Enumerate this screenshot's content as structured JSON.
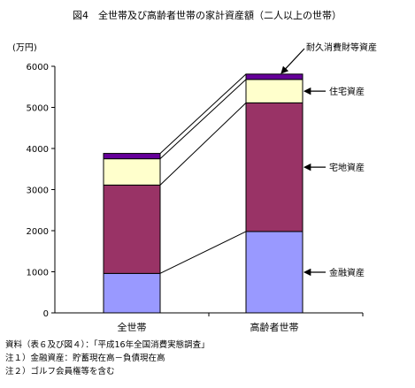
{
  "chart_data": {
    "type": "bar",
    "stacked": true,
    "title": "図4　全世帯及び高齢者世帯の家計資産額（二人以上の世帯）",
    "y_unit_label": "(万円)",
    "ylim": [
      0,
      6000
    ],
    "yticks": [
      0,
      1000,
      2000,
      3000,
      4000,
      5000,
      6000
    ],
    "grid": false,
    "categories": [
      "全世帯",
      "高齢者世帯"
    ],
    "series": [
      {
        "name": "金融資産",
        "color": "#9999ff",
        "values": [
          960,
          1980
        ]
      },
      {
        "name": "宅地資産",
        "color": "#993366",
        "values": [
          2150,
          3130
        ]
      },
      {
        "name": "住宅資産",
        "color": "#ffffcc",
        "values": [
          640,
          570
        ]
      },
      {
        "name": "耐久消費財等資産",
        "color": "#660099",
        "values": [
          130,
          130
        ]
      }
    ],
    "legend_placement": "right, as callout labels"
  },
  "notes": [
    "資料（表６及び図４）：「平成16年全国消費実態調査」",
    "注１）金融資産：貯蓄現在高－負債現在高",
    "注２）ゴルフ会員権等を含む"
  ]
}
